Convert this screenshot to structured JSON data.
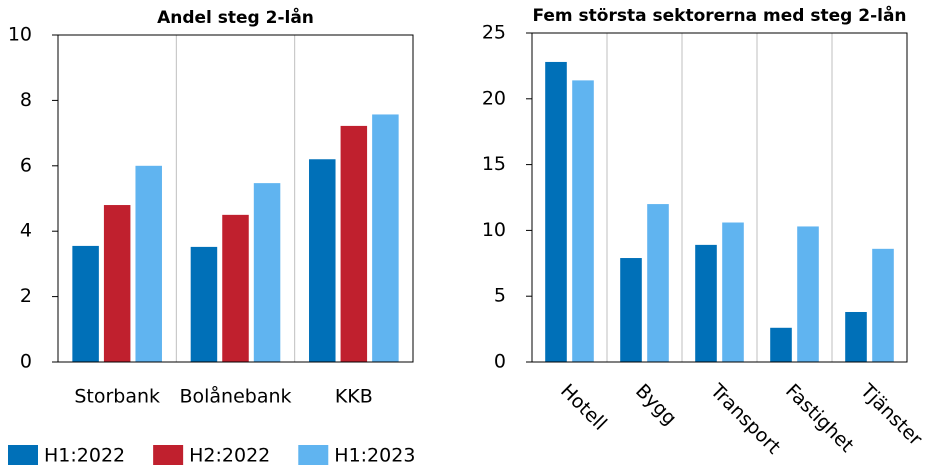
{
  "chart_data": [
    {
      "type": "bar",
      "title": "Andel steg 2-lån",
      "categories": [
        "Storbank",
        "Bolånebank",
        "KKB"
      ],
      "series": [
        {
          "name": "H1:2022",
          "color": "#0070b8",
          "values": [
            3.55,
            3.52,
            6.2
          ]
        },
        {
          "name": "H2:2022",
          "color": "#c0202e",
          "values": [
            4.8,
            4.5,
            7.22
          ]
        },
        {
          "name": "H1:2023",
          "color": "#60b4f0",
          "values": [
            6.0,
            5.47,
            7.57
          ]
        }
      ],
      "ylim": [
        0,
        10
      ],
      "yticks": [
        0,
        2,
        4,
        6,
        8,
        10
      ],
      "grid": true,
      "legend": "bottom"
    },
    {
      "type": "bar",
      "title": "Fem största sektorerna med steg 2-lån",
      "categories": [
        "Hotell",
        "Bygg",
        "Transport",
        "Fastighet",
        "Tjänster"
      ],
      "series": [
        {
          "color": "#0070b8",
          "values": [
            22.8,
            7.9,
            8.9,
            2.6,
            3.8
          ]
        },
        {
          "color": "#60b4f0",
          "values": [
            21.4,
            12.0,
            10.6,
            10.3,
            8.6
          ]
        }
      ],
      "ylim": [
        0,
        25
      ],
      "yticks": [
        0,
        5,
        10,
        15,
        20,
        25
      ],
      "grid": true,
      "rotate_labels": true
    }
  ]
}
